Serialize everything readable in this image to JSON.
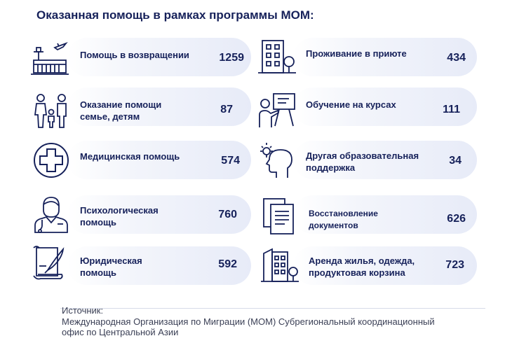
{
  "title": "Оказанная помощь в рамках программы МОМ:",
  "left": [
    {
      "label1": "Помощь в возвращении",
      "label2": "",
      "value": "1259",
      "icon": "airport-icon"
    },
    {
      "label1": "Оказание помощи",
      "label2": "семье, детям",
      "value": "87",
      "icon": "family-icon"
    },
    {
      "label1": "Медицинская помощь",
      "label2": "",
      "value": "574",
      "icon": "medical-cross-icon"
    },
    {
      "label1": "Психологическая",
      "label2": "помощь",
      "value": "760",
      "icon": "doctor-icon"
    },
    {
      "label1": "Юридическая",
      "label2": "помощь",
      "value": "592",
      "icon": "legal-scroll-icon"
    }
  ],
  "right": [
    {
      "label1": "Проживание в приюте",
      "label2": "",
      "value": "434",
      "icon": "building-icon"
    },
    {
      "label1": "Обучение на курсах",
      "label2": "",
      "value": "111",
      "icon": "teacher-board-icon"
    },
    {
      "label1": "Другая образовательная",
      "label2": "поддержка",
      "value": "34",
      "icon": "head-idea-icon"
    },
    {
      "label1": "Восстановление",
      "label2": "документов",
      "value": "626",
      "icon": "documents-icon"
    },
    {
      "label1": "Аренда жилья, одежда,",
      "label2": "продуктовая корзина",
      "value": "723",
      "icon": "apartment-icon"
    }
  ],
  "source": {
    "heading": "Источник:",
    "line1": "Международная Организация по Миграции (МОМ) Субрегиональный координационный",
    "line2": "офис по Центральной Азии"
  },
  "colors": {
    "primary": "#16215a",
    "card_end": "#e7ebf8"
  }
}
